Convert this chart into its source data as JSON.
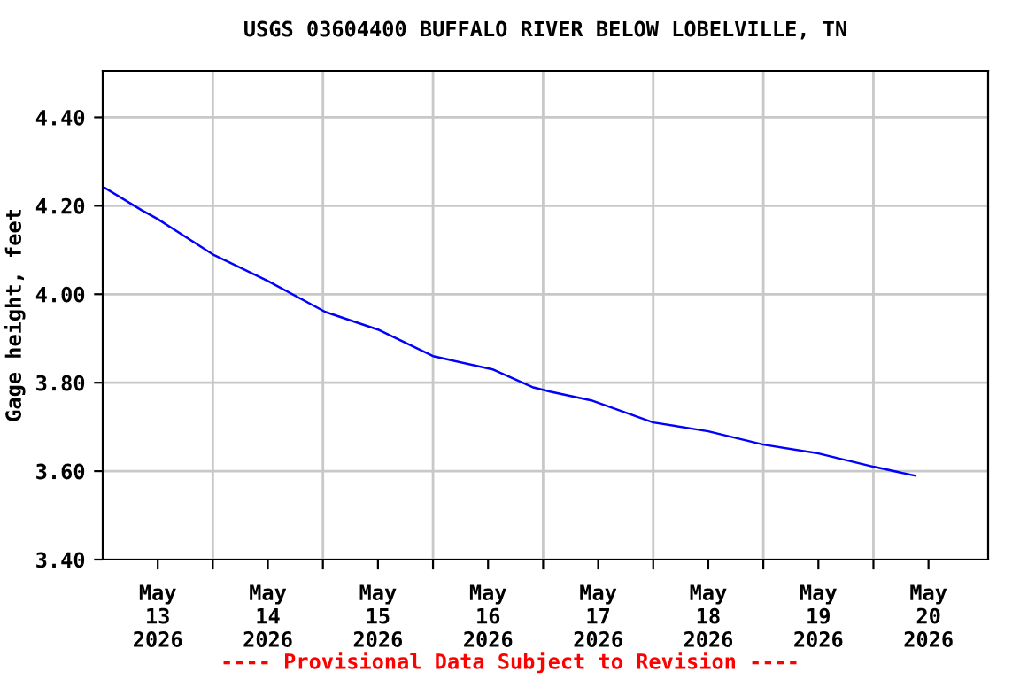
{
  "chart_data": {
    "type": "line",
    "title": "USGS 03604400 BUFFALO RIVER BELOW LOBELVILLE, TN",
    "ylabel": "Gage height, feet",
    "x": [
      "2026-05-12T12:30",
      "2026-05-12T20:30",
      "2026-05-13T00:00",
      "2026-05-13T12:00",
      "2026-05-14T00:00",
      "2026-05-14T12:30",
      "2026-05-15T00:00",
      "2026-05-15T12:00",
      "2026-05-16T01:00",
      "2026-05-16T09:40",
      "2026-05-16T13:30",
      "2026-05-16T22:30",
      "2026-05-17T12:00",
      "2026-05-18T00:00",
      "2026-05-18T12:00",
      "2026-05-19T00:00",
      "2026-05-19T12:00",
      "2026-05-19T21:00"
    ],
    "series": [
      {
        "color": "#0000ff",
        "values": [
          4.24,
          4.19,
          4.17,
          4.09,
          4.03,
          3.96,
          3.92,
          3.86,
          3.83,
          3.79,
          3.78,
          3.76,
          3.71,
          3.69,
          3.66,
          3.64,
          3.61,
          3.59
        ]
      }
    ],
    "ylim": [
      3.4,
      4.505
    ],
    "yticks": [
      {
        "value": 3.4,
        "label": "3.40"
      },
      {
        "value": 3.6,
        "label": "3.60"
      },
      {
        "value": 3.8,
        "label": "3.80"
      },
      {
        "value": 4.0,
        "label": "4.00"
      },
      {
        "value": 4.2,
        "label": "4.20"
      },
      {
        "value": 4.4,
        "label": "4.40"
      }
    ],
    "xlim": [
      "2026-05-12T12:00",
      "2026-05-20T13:00"
    ],
    "xticks": [
      {
        "value": "2026-05-13T00:00",
        "label": "May\n13\n2026"
      },
      {
        "value": "2026-05-14T00:00",
        "label": "May\n14\n2026"
      },
      {
        "value": "2026-05-15T00:00",
        "label": "May\n15\n2026"
      },
      {
        "value": "2026-05-16T00:00",
        "label": "May\n16\n2026"
      },
      {
        "value": "2026-05-17T00:00",
        "label": "May\n17\n2026"
      },
      {
        "value": "2026-05-18T00:00",
        "label": "May\n18\n2026"
      },
      {
        "value": "2026-05-19T00:00",
        "label": "May\n19\n2026"
      },
      {
        "value": "2026-05-20T00:00",
        "label": "May\n20\n2026"
      },
      {
        "value": "2026-05-13T12:00",
        "label": null
      },
      {
        "value": "2026-05-14T12:00",
        "label": null
      },
      {
        "value": "2026-05-15T12:00",
        "label": null
      },
      {
        "value": "2026-05-16T12:00",
        "label": null
      },
      {
        "value": "2026-05-17T12:00",
        "label": null
      },
      {
        "value": "2026-05-18T12:00",
        "label": null
      },
      {
        "value": "2026-05-19T12:00",
        "label": null
      }
    ],
    "grid": true,
    "annotations": [
      "---- Provisional Data Subject to Revision ----"
    ]
  }
}
